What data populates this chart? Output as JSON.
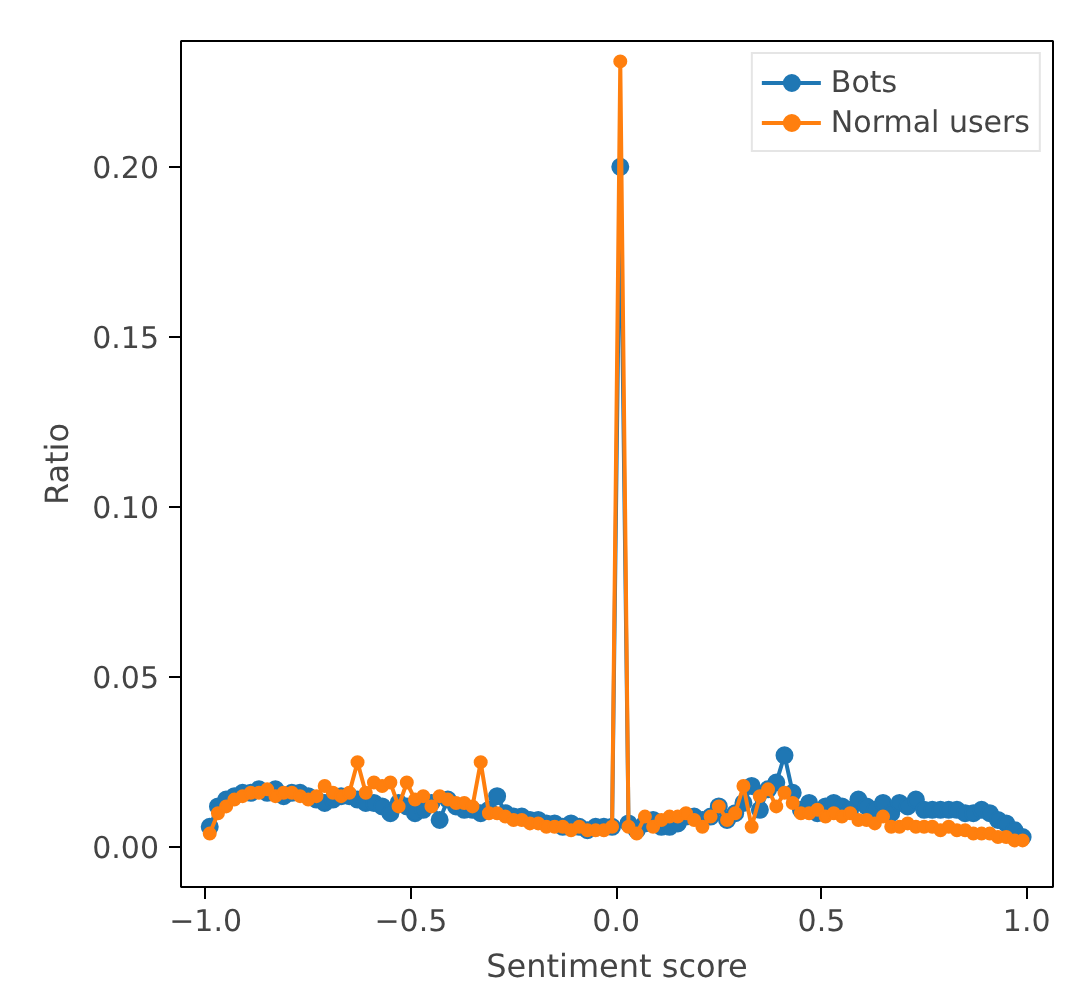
{
  "chart_data": {
    "type": "line",
    "xlabel": "Sentiment score",
    "ylabel": "Ratio",
    "x": [
      -0.99,
      -0.97,
      -0.95,
      -0.93,
      -0.91,
      -0.89,
      -0.87,
      -0.85,
      -0.83,
      -0.81,
      -0.79,
      -0.77,
      -0.75,
      -0.73,
      -0.71,
      -0.69,
      -0.67,
      -0.65,
      -0.63,
      -0.61,
      -0.59,
      -0.57,
      -0.55,
      -0.53,
      -0.51,
      -0.49,
      -0.47,
      -0.45,
      -0.43,
      -0.41,
      -0.39,
      -0.37,
      -0.35,
      -0.33,
      -0.31,
      -0.29,
      -0.27,
      -0.25,
      -0.23,
      -0.21,
      -0.19,
      -0.17,
      -0.15,
      -0.13,
      -0.11,
      -0.09,
      -0.07,
      -0.05,
      -0.03,
      -0.01,
      0.01,
      0.03,
      0.05,
      0.07,
      0.09,
      0.11,
      0.13,
      0.15,
      0.17,
      0.19,
      0.21,
      0.23,
      0.25,
      0.27,
      0.29,
      0.31,
      0.33,
      0.35,
      0.37,
      0.39,
      0.41,
      0.43,
      0.45,
      0.47,
      0.49,
      0.51,
      0.53,
      0.55,
      0.57,
      0.59,
      0.61,
      0.63,
      0.65,
      0.67,
      0.69,
      0.71,
      0.73,
      0.75,
      0.77,
      0.79,
      0.81,
      0.83,
      0.85,
      0.87,
      0.89,
      0.91,
      0.93,
      0.95,
      0.97,
      0.99
    ],
    "series": [
      {
        "name": "Bots",
        "color": "#1f77b4",
        "values": [
          0.006,
          0.012,
          0.014,
          0.015,
          0.016,
          0.016,
          0.017,
          0.016,
          0.017,
          0.015,
          0.016,
          0.016,
          0.015,
          0.014,
          0.013,
          0.014,
          0.015,
          0.015,
          0.014,
          0.013,
          0.013,
          0.012,
          0.01,
          0.013,
          0.012,
          0.01,
          0.011,
          0.013,
          0.008,
          0.014,
          0.012,
          0.011,
          0.011,
          0.01,
          0.011,
          0.015,
          0.01,
          0.009,
          0.009,
          0.008,
          0.008,
          0.007,
          0.007,
          0.006,
          0.007,
          0.006,
          0.005,
          0.006,
          0.006,
          0.006,
          0.2,
          0.007,
          0.005,
          0.007,
          0.008,
          0.006,
          0.006,
          0.007,
          0.009,
          0.009,
          0.008,
          0.009,
          0.012,
          0.008,
          0.01,
          0.013,
          0.018,
          0.011,
          0.017,
          0.019,
          0.027,
          0.016,
          0.011,
          0.013,
          0.01,
          0.012,
          0.013,
          0.012,
          0.011,
          0.014,
          0.012,
          0.011,
          0.013,
          0.01,
          0.013,
          0.012,
          0.014,
          0.011,
          0.011,
          0.011,
          0.011,
          0.011,
          0.01,
          0.01,
          0.011,
          0.01,
          0.008,
          0.007,
          0.005,
          0.003
        ]
      },
      {
        "name": "Normal users",
        "color": "#ff7f0e",
        "values": [
          0.004,
          0.01,
          0.012,
          0.014,
          0.015,
          0.016,
          0.016,
          0.017,
          0.015,
          0.016,
          0.016,
          0.015,
          0.014,
          0.015,
          0.018,
          0.016,
          0.015,
          0.016,
          0.025,
          0.016,
          0.019,
          0.018,
          0.019,
          0.012,
          0.019,
          0.014,
          0.015,
          0.012,
          0.015,
          0.014,
          0.013,
          0.013,
          0.012,
          0.025,
          0.01,
          0.01,
          0.009,
          0.008,
          0.008,
          0.007,
          0.007,
          0.006,
          0.006,
          0.006,
          0.005,
          0.006,
          0.005,
          0.005,
          0.005,
          0.006,
          0.231,
          0.006,
          0.004,
          0.009,
          0.006,
          0.008,
          0.009,
          0.009,
          0.01,
          0.008,
          0.006,
          0.009,
          0.012,
          0.008,
          0.01,
          0.018,
          0.006,
          0.015,
          0.017,
          0.012,
          0.016,
          0.013,
          0.01,
          0.01,
          0.011,
          0.009,
          0.01,
          0.009,
          0.01,
          0.008,
          0.008,
          0.007,
          0.009,
          0.006,
          0.006,
          0.007,
          0.006,
          0.006,
          0.006,
          0.005,
          0.006,
          0.005,
          0.005,
          0.004,
          0.004,
          0.004,
          0.003,
          0.003,
          0.002,
          0.002
        ]
      }
    ],
    "xlim": [
      -1.06,
      1.064
    ],
    "ylim": [
      -0.0117,
      0.237
    ],
    "xticks": [
      {
        "value": -1.0,
        "label": "−1.0"
      },
      {
        "value": -0.5,
        "label": "−0.5"
      },
      {
        "value": 0.0,
        "label": "0.0"
      },
      {
        "value": 0.5,
        "label": "0.5"
      },
      {
        "value": 1.0,
        "label": "1.0"
      }
    ],
    "yticks": [
      {
        "value": 0.0,
        "label": "0.00"
      },
      {
        "value": 0.05,
        "label": "0.05"
      },
      {
        "value": 0.1,
        "label": "0.10"
      },
      {
        "value": 0.15,
        "label": "0.15"
      },
      {
        "value": 0.2,
        "label": "0.20"
      }
    ],
    "legend": "top right",
    "marker": "circle",
    "line_style": "solid",
    "grid": false
  }
}
